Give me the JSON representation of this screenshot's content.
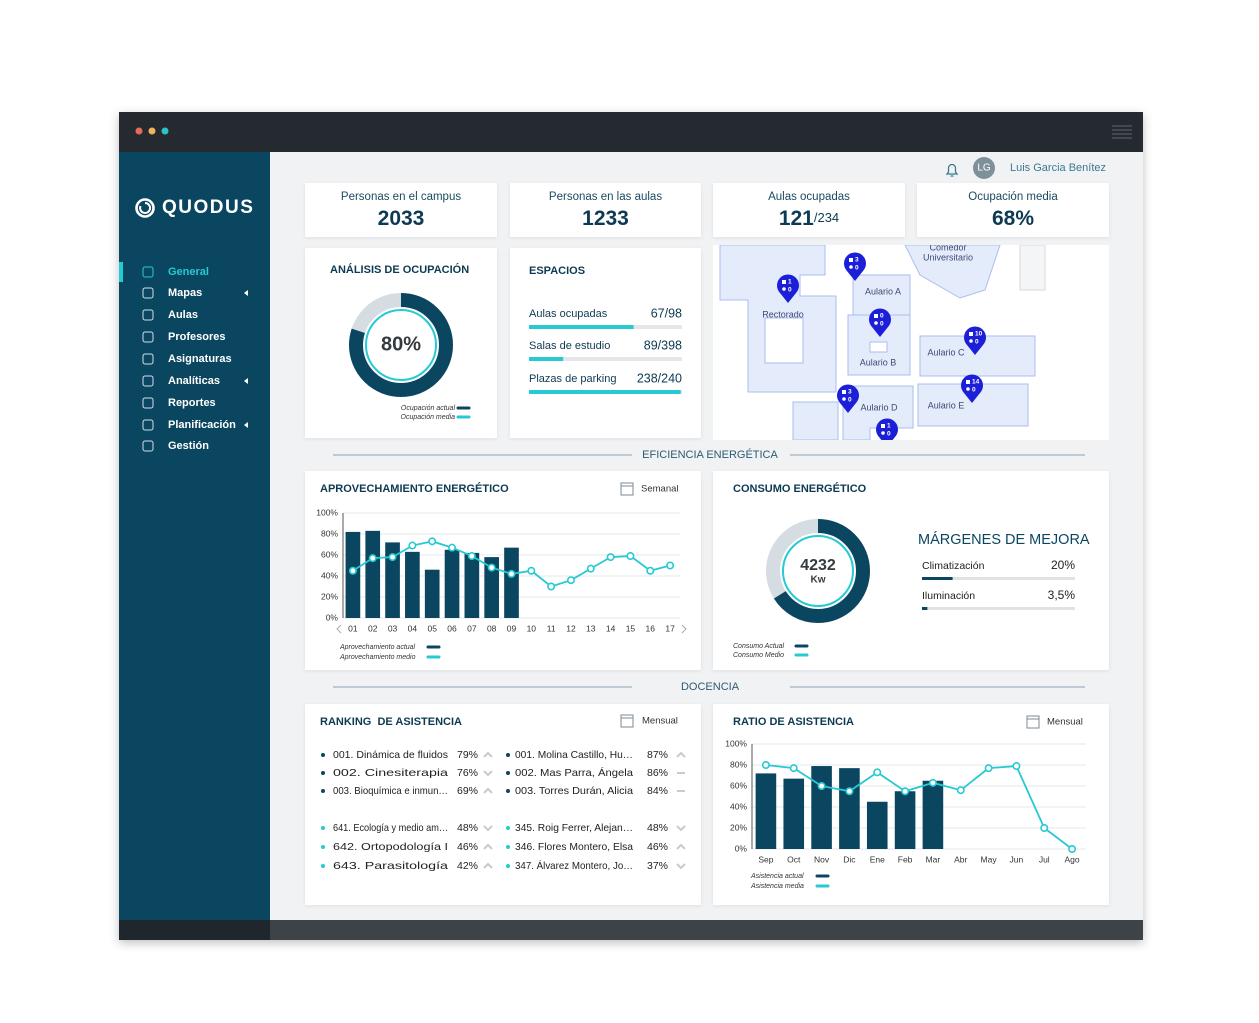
{
  "window": {
    "brand": "QUODUS"
  },
  "header": {
    "user_initials": "LG",
    "user_name": "Luis Garcia Benítez"
  },
  "menu": [
    {
      "label": "General",
      "active": true
    },
    {
      "label": "Mapas",
      "submenu": true
    },
    {
      "label": "Aulas"
    },
    {
      "label": "Profesores"
    },
    {
      "label": "Asignaturas"
    },
    {
      "label": "Analíticas",
      "submenu": true
    },
    {
      "label": "Reportes"
    },
    {
      "label": "Planificación",
      "submenu": true
    },
    {
      "label": "Gestión"
    }
  ],
  "kpis": [
    {
      "label": "Personas en el campus",
      "value": "2033"
    },
    {
      "label": "Personas en las aulas",
      "value": "1233"
    },
    {
      "label": "Aulas ocupadas",
      "value": "121",
      "total": "/234"
    },
    {
      "label": "Ocupación media",
      "value": "68%"
    }
  ],
  "spaces": {
    "title": "ESPACIOS",
    "rows": [
      {
        "label": "Aulas ocupadas",
        "value": 67,
        "total": 98,
        "value_label": "67/98"
      },
      {
        "label": "Salas de estudio",
        "value": 89,
        "total": 398,
        "value_label": "89/398"
      },
      {
        "label": "Plazas de parking",
        "value": 238,
        "total": 240,
        "value_label": "238/240"
      }
    ]
  },
  "map": {
    "labels": [
      "Comedor",
      "Universitario",
      "Rectorado",
      "Aulario A",
      "Aulario B",
      "Aulario C",
      "Aulario D",
      "Aulario E"
    ],
    "pins": [
      {
        "rooms": 3,
        "people": 0
      },
      {
        "rooms": 1,
        "people": 0
      },
      {
        "rooms": 0,
        "people": 0
      },
      {
        "rooms": 10,
        "people": 0
      },
      {
        "rooms": 3,
        "people": 0
      },
      {
        "rooms": 14,
        "people": 0
      },
      {
        "rooms": 1,
        "people": 0
      }
    ]
  },
  "sections": [
    "EFICIENCIA ENERGÉTICA",
    "DOCENCIA"
  ],
  "improvement": {
    "title": "MÁRGENES DE MEJORA",
    "rows": [
      {
        "label": "Climatización",
        "value": 20,
        "value_label": "20%"
      },
      {
        "label": "Iluminación",
        "value": 3.5,
        "value_label": "3,5%"
      }
    ]
  },
  "ranking": {
    "title": "RANKING  DE ASISTENCIA",
    "period": "Mensual",
    "top": {
      "subjects": [
        {
          "label": "001. Dinámica de fluidos",
          "value": "79%",
          "trend": "up"
        },
        {
          "label": "002. Cinesiterapia",
          "value": "76%",
          "trend": "down"
        },
        {
          "label": "003. Bioquímica e inmun…",
          "value": "69%",
          "trend": "up"
        }
      ],
      "teachers": [
        {
          "label": "001. Molina Castillo, Hu…",
          "value": "87%",
          "trend": "up"
        },
        {
          "label": "002. Mas Parra, Ángela",
          "value": "86%",
          "trend": "flat"
        },
        {
          "label": "003. Torres Durán, Alicia",
          "value": "84%",
          "trend": "flat"
        }
      ]
    },
    "bottom": {
      "subjects": [
        {
          "label": "641. Ecología y medio am…",
          "value": "48%",
          "trend": "down"
        },
        {
          "label": "642. Ortopodología I",
          "value": "46%",
          "trend": "up"
        },
        {
          "label": "643. Parasitología",
          "value": "42%",
          "trend": "up"
        }
      ],
      "teachers": [
        {
          "label": "345. Roig Ferrer, Alejan…",
          "value": "48%",
          "trend": "down"
        },
        {
          "label": "346. Flores Montero, Elsa",
          "value": "46%",
          "trend": "up"
        },
        {
          "label": "347. Álvarez Montero, Jo…",
          "value": "37%",
          "trend": "down"
        }
      ]
    }
  },
  "chart_data": [
    {
      "type": "donut",
      "title": "ANÁLISIS DE OCUPACIÓN",
      "value": 80,
      "value_label": "80%",
      "series": [
        {
          "name": "Ocupación actual",
          "color": "#0b4660"
        },
        {
          "name": "Ocupación media",
          "color": "#27c9d3"
        }
      ]
    },
    {
      "type": "combo",
      "title": "APROVECHAMIENTO ENERGÉTICO",
      "period": "Semanal",
      "categories": [
        "01",
        "02",
        "03",
        "04",
        "05",
        "06",
        "07",
        "08",
        "09",
        "10",
        "11",
        "12",
        "13",
        "14",
        "15",
        "16",
        "17"
      ],
      "ylim": [
        0,
        100
      ],
      "yticks": [
        {
          "value": 0,
          "label": "0%"
        },
        {
          "value": 20,
          "label": "20%"
        },
        {
          "value": 40,
          "label": "40%"
        },
        {
          "value": 60,
          "label": "60%"
        },
        {
          "value": 80,
          "label": "80%"
        },
        {
          "value": 100,
          "label": "100%"
        }
      ],
      "grid": true,
      "series": [
        {
          "name": "Aprovechamiento actual",
          "type": "bar",
          "color": "#0b4660",
          "values": [
            82,
            83,
            72,
            63,
            46,
            65,
            62,
            58,
            67,
            null,
            null,
            null,
            null,
            null,
            null,
            null,
            null
          ]
        },
        {
          "name": "Aprovechamiento medio",
          "type": "line",
          "color": "#27c9d3",
          "values": [
            45,
            57,
            58,
            69,
            73,
            67,
            59,
            48,
            42,
            45,
            30,
            36,
            47,
            58,
            59,
            45,
            50
          ]
        }
      ]
    },
    {
      "type": "donut",
      "title": "CONSUMO ENERGÉTICO",
      "value": 4232,
      "unit": "Kw",
      "fill_percent": 66,
      "series": [
        {
          "name": "Consumo Actual",
          "color": "#0b4660"
        },
        {
          "name": "Consumo Medio",
          "color": "#27c9d3"
        }
      ]
    },
    {
      "type": "combo",
      "title": "RATIO DE ASISTENCIA",
      "period": "Mensual",
      "categories": [
        "Sep",
        "Oct",
        "Nov",
        "Dic",
        "Ene",
        "Feb",
        "Mar",
        "Abr",
        "May",
        "Jun",
        "Jul",
        "Ago"
      ],
      "ylim": [
        0,
        100
      ],
      "yticks": [
        {
          "value": 0,
          "label": "0%"
        },
        {
          "value": 20,
          "label": "20%"
        },
        {
          "value": 40,
          "label": "40%"
        },
        {
          "value": 60,
          "label": "60%"
        },
        {
          "value": 80,
          "label": "80%"
        },
        {
          "value": 100,
          "label": "100%"
        }
      ],
      "grid": true,
      "series": [
        {
          "name": "Asistencia actual",
          "type": "bar",
          "color": "#0b4660",
          "values": [
            72,
            67,
            79,
            77,
            45,
            55,
            65,
            null,
            null,
            null,
            null,
            null
          ]
        },
        {
          "name": "Asistencia media",
          "type": "line",
          "color": "#27c9d3",
          "values": [
            80,
            77,
            60,
            55,
            73,
            55,
            63,
            56,
            77,
            79,
            20,
            0
          ]
        }
      ]
    }
  ]
}
